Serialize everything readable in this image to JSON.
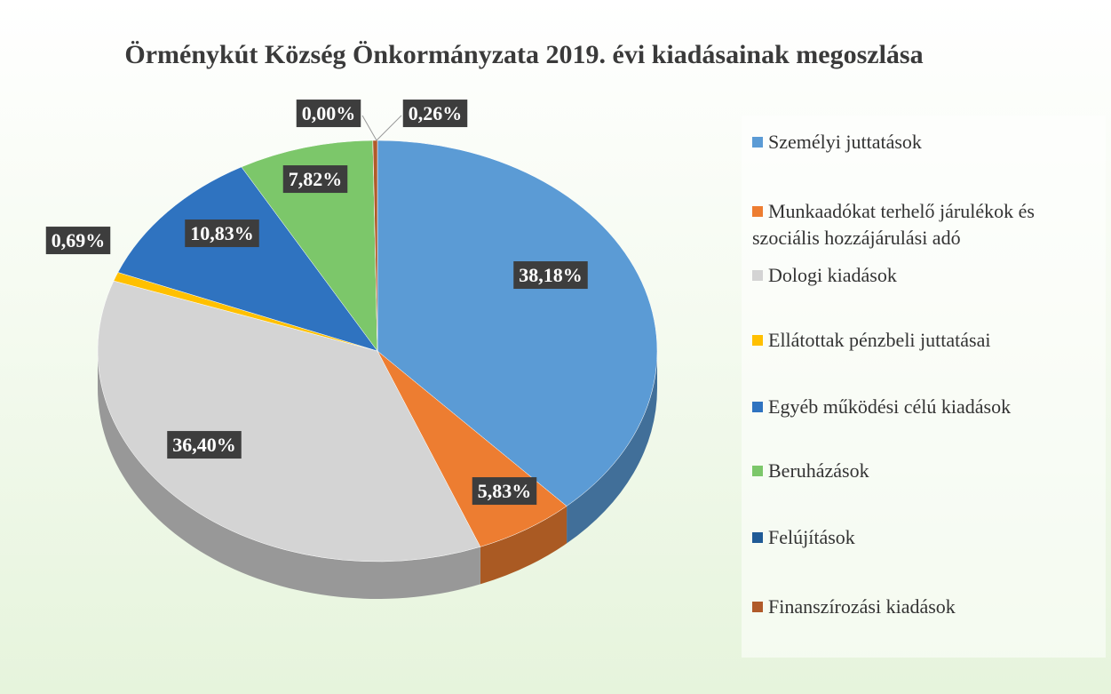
{
  "chart_data": {
    "type": "pie3d",
    "title": "Örménykút Község Önkormányzata 2019. évi kiadásainak megoszlása",
    "categories": [
      "Személyi juttatások",
      "Munkaadókat terhelő járulékok és szociális hozzájárulási adó",
      "Dologi kiadások",
      "Ellátottak pénzbeli juttatásai",
      "Egyéb működési célú kiadások",
      "Beruházások",
      "Felújítások",
      "Finanszírozási kiadások"
    ],
    "values": [
      38.18,
      5.83,
      36.4,
      0.69,
      10.83,
      7.82,
      0.0,
      0.26
    ],
    "value_labels": [
      "38,18%",
      "5,83%",
      "36,40%",
      "0,69%",
      "10,83%",
      "7,82%",
      "0,00%",
      "0,26%"
    ],
    "colors": [
      "#5b9bd5",
      "#ed7d31",
      "#d4d4d4",
      "#ffc000",
      "#2f73c0",
      "#7cc76a",
      "#1f5a96",
      "#b05a2a"
    ],
    "legend": "right"
  }
}
